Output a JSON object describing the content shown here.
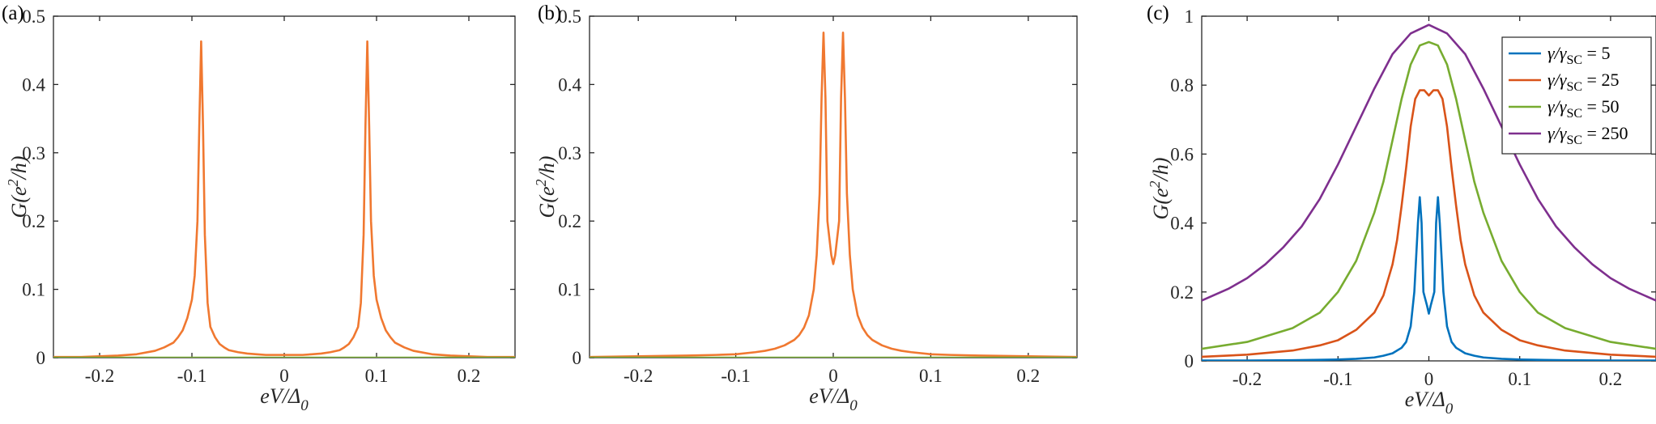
{
  "chart_data": [
    {
      "id": "a",
      "panel_label": "(a)",
      "type": "line",
      "xlabel_main": "eV/Δ",
      "xlabel_sub": "0",
      "ylabel_main": "G(e",
      "ylabel_sup": "2",
      "ylabel_end": "/h)",
      "xlim": [
        -0.25,
        0.25
      ],
      "ylim": [
        0,
        0.5
      ],
      "xticks": [
        -0.2,
        -0.1,
        0,
        0.1,
        0.2
      ],
      "xtick_labels": [
        "-0.2",
        "-0.1",
        "0",
        "0.1",
        "0.2"
      ],
      "yticks": [
        0,
        0.1,
        0.2,
        0.3,
        0.4,
        0.5
      ],
      "ytick_labels": [
        "0",
        "0.1",
        "0.2",
        "0.3",
        "0.4",
        "0.5"
      ],
      "series": [
        {
          "color": "#F07830",
          "x": [
            -0.25,
            -0.22,
            -0.2,
            -0.18,
            -0.16,
            -0.14,
            -0.13,
            -0.12,
            -0.115,
            -0.11,
            -0.105,
            -0.1,
            -0.097,
            -0.094,
            -0.092,
            -0.09,
            -0.088,
            -0.086,
            -0.083,
            -0.08,
            -0.075,
            -0.07,
            -0.065,
            -0.06,
            -0.05,
            -0.04,
            -0.03,
            -0.02,
            -0.01,
            0,
            0.01,
            0.02,
            0.03,
            0.04,
            0.05,
            0.06,
            0.065,
            0.07,
            0.075,
            0.08,
            0.083,
            0.086,
            0.088,
            0.09,
            0.092,
            0.094,
            0.097,
            0.1,
            0.105,
            0.11,
            0.115,
            0.12,
            0.13,
            0.14,
            0.16,
            0.18,
            0.2,
            0.22,
            0.25
          ],
          "y": [
            0.001,
            0.001,
            0.002,
            0.003,
            0.005,
            0.01,
            0.015,
            0.022,
            0.03,
            0.04,
            0.058,
            0.085,
            0.12,
            0.2,
            0.34,
            0.463,
            0.34,
            0.18,
            0.08,
            0.045,
            0.03,
            0.02,
            0.015,
            0.011,
            0.008,
            0.006,
            0.005,
            0.004,
            0.004,
            0.004,
            0.004,
            0.004,
            0.005,
            0.006,
            0.008,
            0.011,
            0.015,
            0.02,
            0.03,
            0.045,
            0.08,
            0.18,
            0.34,
            0.463,
            0.34,
            0.2,
            0.12,
            0.085,
            0.058,
            0.04,
            0.03,
            0.022,
            0.015,
            0.01,
            0.005,
            0.003,
            0.002,
            0.001,
            0.001
          ]
        },
        {
          "color": "#77AC30",
          "x": [
            -0.25,
            0.25
          ],
          "y": [
            0,
            0
          ]
        }
      ]
    },
    {
      "id": "b",
      "panel_label": "(b)",
      "type": "line",
      "xlabel_main": "eV/Δ",
      "xlabel_sub": "0",
      "ylabel_main": "G(e",
      "ylabel_sup": "2",
      "ylabel_end": "/h)",
      "xlim": [
        -0.25,
        0.25
      ],
      "ylim": [
        0,
        0.5
      ],
      "xticks": [
        -0.2,
        -0.1,
        0,
        0.1,
        0.2
      ],
      "xtick_labels": [
        "-0.2",
        "-0.1",
        "0",
        "0.1",
        "0.2"
      ],
      "yticks": [
        0,
        0.1,
        0.2,
        0.3,
        0.4,
        0.5
      ],
      "ytick_labels": [
        "0",
        "0.1",
        "0.2",
        "0.3",
        "0.4",
        "0.5"
      ],
      "series": [
        {
          "color": "#F07830",
          "x": [
            -0.25,
            -0.2,
            -0.15,
            -0.12,
            -0.1,
            -0.08,
            -0.07,
            -0.06,
            -0.05,
            -0.04,
            -0.035,
            -0.03,
            -0.025,
            -0.02,
            -0.017,
            -0.014,
            -0.012,
            -0.01,
            -0.008,
            -0.006,
            -0.004,
            -0.002,
            0,
            0.002,
            0.004,
            0.006,
            0.008,
            0.01,
            0.012,
            0.014,
            0.017,
            0.02,
            0.025,
            0.03,
            0.035,
            0.04,
            0.05,
            0.06,
            0.07,
            0.08,
            0.1,
            0.12,
            0.15,
            0.2,
            0.25
          ],
          "y": [
            0.001,
            0.002,
            0.003,
            0.004,
            0.005,
            0.008,
            0.01,
            0.013,
            0.018,
            0.026,
            0.033,
            0.044,
            0.062,
            0.1,
            0.15,
            0.24,
            0.38,
            0.476,
            0.38,
            0.2,
            0.175,
            0.15,
            0.137,
            0.15,
            0.175,
            0.2,
            0.38,
            0.476,
            0.38,
            0.24,
            0.15,
            0.1,
            0.062,
            0.044,
            0.033,
            0.026,
            0.018,
            0.013,
            0.01,
            0.008,
            0.005,
            0.004,
            0.003,
            0.002,
            0.001
          ]
        },
        {
          "color": "#77AC30",
          "x": [
            -0.25,
            0.25
          ],
          "y": [
            0,
            0
          ]
        }
      ]
    },
    {
      "id": "c",
      "panel_label": "(c)",
      "type": "line",
      "xlabel_main": "eV/Δ",
      "xlabel_sub": "0",
      "ylabel_main": "G(e",
      "ylabel_sup": "2",
      "ylabel_end": "/h)",
      "xlim": [
        -0.25,
        0.25
      ],
      "ylim": [
        0,
        1
      ],
      "xticks": [
        -0.2,
        -0.1,
        0,
        0.1,
        0.2
      ],
      "xtick_labels": [
        "-0.2",
        "-0.1",
        "0",
        "0.1",
        "0.2"
      ],
      "yticks": [
        0,
        0.2,
        0.4,
        0.6,
        0.8,
        1
      ],
      "ytick_labels": [
        "0",
        "0.2",
        "0.4",
        "0.6",
        "0.8",
        "1"
      ],
      "legend_position": "top-right",
      "series": [
        {
          "legend_main": "γ/γ",
          "legend_sub": "SC",
          "legend_value": " = 5",
          "color": "#0072BD",
          "x": [
            -0.25,
            -0.2,
            -0.15,
            -0.12,
            -0.1,
            -0.08,
            -0.06,
            -0.05,
            -0.04,
            -0.03,
            -0.025,
            -0.02,
            -0.016,
            -0.012,
            -0.01,
            -0.008,
            -0.006,
            -0.004,
            -0.002,
            0,
            0.002,
            0.004,
            0.006,
            0.008,
            0.01,
            0.012,
            0.016,
            0.02,
            0.025,
            0.03,
            0.04,
            0.05,
            0.06,
            0.08,
            0.1,
            0.12,
            0.15,
            0.2,
            0.25
          ],
          "y": [
            0.001,
            0.001,
            0.002,
            0.003,
            0.004,
            0.006,
            0.01,
            0.015,
            0.022,
            0.038,
            0.055,
            0.1,
            0.2,
            0.4,
            0.475,
            0.4,
            0.2,
            0.18,
            0.16,
            0.137,
            0.16,
            0.18,
            0.2,
            0.4,
            0.475,
            0.4,
            0.2,
            0.1,
            0.055,
            0.038,
            0.022,
            0.015,
            0.01,
            0.006,
            0.004,
            0.003,
            0.002,
            0.001,
            0.001
          ]
        },
        {
          "legend_main": "γ/γ",
          "legend_sub": "SC",
          "legend_value": " = 25",
          "color": "#D95319",
          "x": [
            -0.25,
            -0.2,
            -0.15,
            -0.12,
            -0.1,
            -0.08,
            -0.06,
            -0.05,
            -0.04,
            -0.035,
            -0.03,
            -0.025,
            -0.02,
            -0.015,
            -0.01,
            -0.005,
            0,
            0.005,
            0.01,
            0.015,
            0.02,
            0.025,
            0.03,
            0.035,
            0.04,
            0.05,
            0.06,
            0.08,
            0.1,
            0.12,
            0.15,
            0.2,
            0.25
          ],
          "y": [
            0.012,
            0.018,
            0.03,
            0.045,
            0.06,
            0.09,
            0.14,
            0.19,
            0.28,
            0.35,
            0.45,
            0.56,
            0.68,
            0.76,
            0.785,
            0.785,
            0.77,
            0.785,
            0.785,
            0.76,
            0.68,
            0.56,
            0.45,
            0.35,
            0.28,
            0.19,
            0.14,
            0.09,
            0.06,
            0.045,
            0.03,
            0.018,
            0.012
          ]
        },
        {
          "legend_main": "γ/γ",
          "legend_sub": "SC",
          "legend_value": " = 50",
          "color": "#77AC30",
          "x": [
            -0.25,
            -0.2,
            -0.15,
            -0.12,
            -0.1,
            -0.08,
            -0.06,
            -0.05,
            -0.04,
            -0.03,
            -0.02,
            -0.01,
            0,
            0.01,
            0.02,
            0.03,
            0.04,
            0.05,
            0.06,
            0.08,
            0.1,
            0.12,
            0.15,
            0.2,
            0.25
          ],
          "y": [
            0.035,
            0.055,
            0.095,
            0.14,
            0.2,
            0.29,
            0.43,
            0.52,
            0.64,
            0.76,
            0.86,
            0.915,
            0.925,
            0.915,
            0.86,
            0.76,
            0.64,
            0.52,
            0.43,
            0.29,
            0.2,
            0.14,
            0.095,
            0.055,
            0.035
          ]
        },
        {
          "legend_main": "γ/γ",
          "legend_sub": "SC",
          "legend_value": " = 250",
          "color": "#7E2F8E",
          "x": [
            -0.25,
            -0.22,
            -0.2,
            -0.18,
            -0.16,
            -0.14,
            -0.12,
            -0.1,
            -0.08,
            -0.06,
            -0.04,
            -0.02,
            0,
            0.02,
            0.04,
            0.06,
            0.08,
            0.1,
            0.12,
            0.14,
            0.16,
            0.18,
            0.2,
            0.22,
            0.25
          ],
          "y": [
            0.175,
            0.21,
            0.24,
            0.28,
            0.33,
            0.39,
            0.47,
            0.57,
            0.68,
            0.79,
            0.89,
            0.95,
            0.975,
            0.95,
            0.89,
            0.79,
            0.68,
            0.57,
            0.47,
            0.39,
            0.33,
            0.28,
            0.24,
            0.21,
            0.175
          ]
        }
      ]
    }
  ]
}
